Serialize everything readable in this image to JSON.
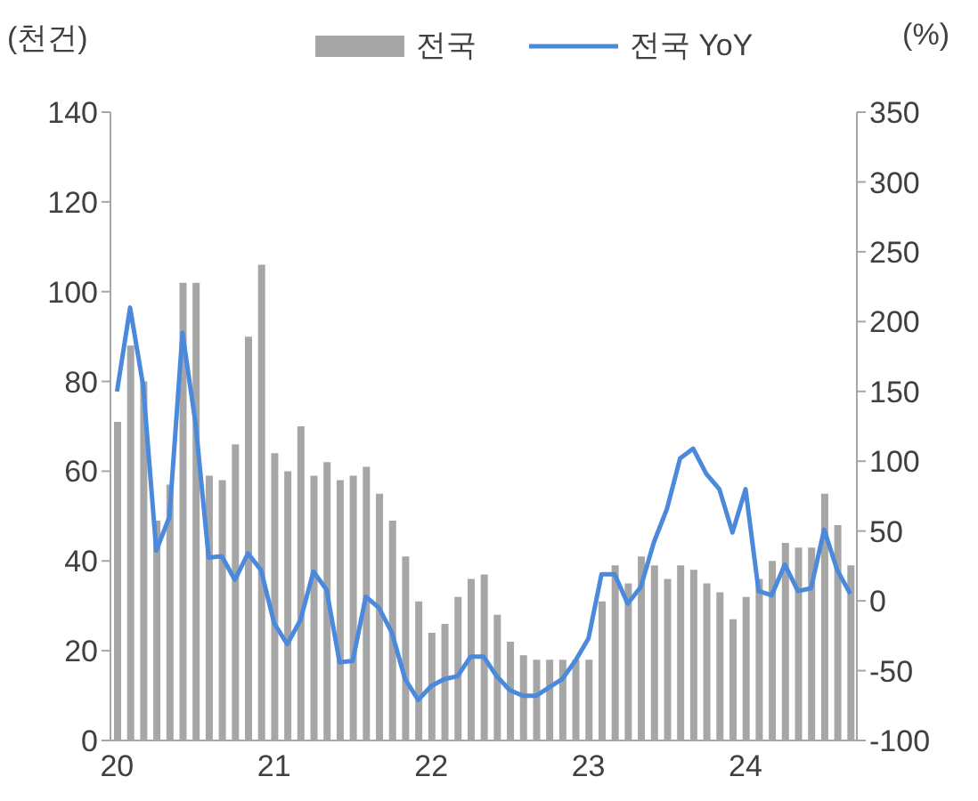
{
  "chart_data": {
    "type": "bar",
    "ylabel": "(천건)",
    "y2label": "(%)",
    "categories": [
      "20",
      null,
      null,
      null,
      null,
      null,
      null,
      null,
      null,
      null,
      null,
      null,
      "21",
      null,
      null,
      null,
      null,
      null,
      null,
      null,
      null,
      null,
      null,
      null,
      "22",
      null,
      null,
      null,
      null,
      null,
      null,
      null,
      null,
      null,
      null,
      null,
      "23",
      null,
      null,
      null,
      null,
      null,
      null,
      null,
      null,
      null,
      null,
      null,
      "24",
      null,
      null,
      null,
      null,
      null,
      null,
      null,
      null
    ],
    "series": [
      {
        "name": "전국",
        "color": "#a6a6a6",
        "values": [
          71,
          88,
          80,
          49,
          57,
          102,
          102,
          59,
          58,
          66,
          90,
          106,
          64,
          60,
          70,
          59,
          62,
          58,
          59,
          61,
          55,
          49,
          41,
          31,
          24,
          26,
          32,
          36,
          37,
          28,
          22,
          19,
          18,
          18,
          18,
          18,
          18,
          31,
          39,
          35,
          41,
          39,
          36,
          39,
          38,
          35,
          33,
          27,
          32,
          36,
          40,
          44,
          43,
          43,
          55,
          48,
          39
        ]
      },
      {
        "name": "전국 YoY",
        "type": "line",
        "axis": "y2",
        "color": "#4a89dc",
        "values": [
          150,
          210,
          154,
          36,
          60,
          192,
          127,
          31,
          32,
          15,
          34,
          22,
          -16,
          -31,
          -14,
          21,
          8,
          -44,
          -43,
          3,
          -5,
          -23,
          -56,
          -71,
          -61,
          -56,
          -54,
          -40,
          -40,
          -54,
          -64,
          -68,
          -68,
          -62,
          -56,
          -43,
          -27,
          19,
          19,
          -2,
          10,
          42,
          66,
          102,
          109,
          91,
          80,
          49,
          80,
          7,
          4,
          26,
          7,
          9,
          51,
          22,
          5
        ]
      }
    ],
    "ylim": [
      0,
      140
    ],
    "yticks": [
      0,
      20,
      40,
      60,
      80,
      100,
      120,
      140
    ],
    "y2lim": [
      -100,
      350
    ],
    "y2ticks": [
      -100,
      -50,
      0,
      50,
      100,
      150,
      200,
      250,
      300,
      350
    ],
    "grid": false,
    "legend": "top",
    "marker": "none",
    "line_style": "solid"
  }
}
